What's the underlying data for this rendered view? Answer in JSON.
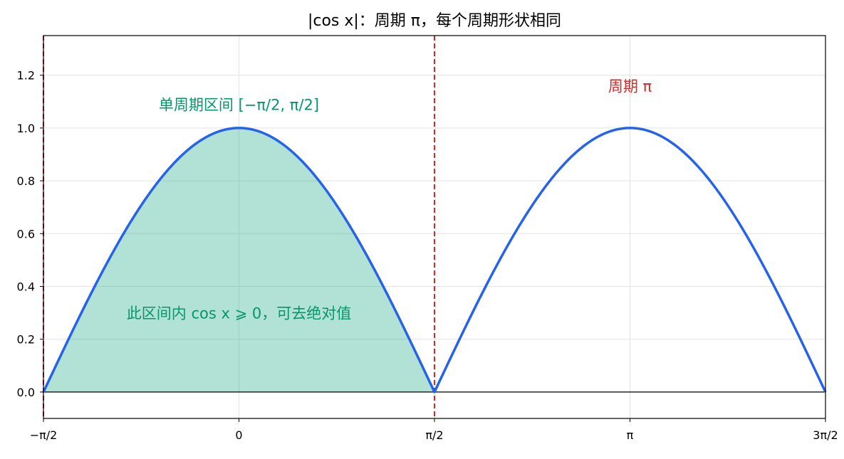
{
  "chart_data": {
    "type": "line",
    "title": "|cos x|：周期 π，每个周期形状相同",
    "xlabel": "",
    "ylabel": "",
    "function": "|cos x|",
    "xlim": [
      -1.5708,
      4.7124
    ],
    "ylim": [
      -0.1,
      1.35
    ],
    "grid": true,
    "x_ticks": [
      {
        "value": -1.5708,
        "label": "−π/2"
      },
      {
        "value": 0,
        "label": "0"
      },
      {
        "value": 1.5708,
        "label": "π/2"
      },
      {
        "value": 3.1416,
        "label": "π"
      },
      {
        "value": 4.7124,
        "label": "3π/2"
      }
    ],
    "y_ticks": [
      {
        "value": 0.0,
        "label": "0.0"
      },
      {
        "value": 0.2,
        "label": "0.2"
      },
      {
        "value": 0.4,
        "label": "0.4"
      },
      {
        "value": 0.6,
        "label": "0.6"
      },
      {
        "value": 0.8,
        "label": "0.8"
      },
      {
        "value": 1.0,
        "label": "1.0"
      },
      {
        "value": 1.2,
        "label": "1.2"
      }
    ],
    "series": [
      {
        "color": "#2563eb",
        "x": [
          -1.5708,
          -1.1781,
          -0.7854,
          -0.3927,
          0,
          0.3927,
          0.7854,
          1.1781,
          1.5708,
          1.9635,
          2.3562,
          2.7489,
          3.1416,
          3.5343,
          3.927,
          4.3197,
          4.7124
        ],
        "y": [
          0.0,
          0.3827,
          0.7071,
          0.9239,
          1.0,
          0.9239,
          0.7071,
          0.3827,
          0.0,
          0.3827,
          0.7071,
          0.9239,
          1.0,
          0.9239,
          0.7071,
          0.3827,
          0.0
        ]
      }
    ],
    "shaded_region": {
      "x_from": -1.5708,
      "x_to": 1.5708,
      "color": "#10a37f"
    },
    "vertical_lines": [
      {
        "x": -1.5708,
        "color": "#dc2626",
        "style": "dashed"
      },
      {
        "x": 1.5708,
        "color": "#dc2626",
        "style": "dashed"
      }
    ],
    "baseline": {
      "y": 0,
      "color": "#000000"
    },
    "annotations": [
      {
        "text": "单周期区间 [−π/2, π/2]",
        "x": 0.0,
        "y": 1.09,
        "color": "#059669"
      },
      {
        "text": "周期 π",
        "x": 3.1416,
        "y": 1.16,
        "color": "#dc2626"
      },
      {
        "text": "此区间内 cos x ⩾ 0，可去绝对值",
        "x": 0.0,
        "y": 0.3,
        "color": "#059669"
      }
    ]
  }
}
